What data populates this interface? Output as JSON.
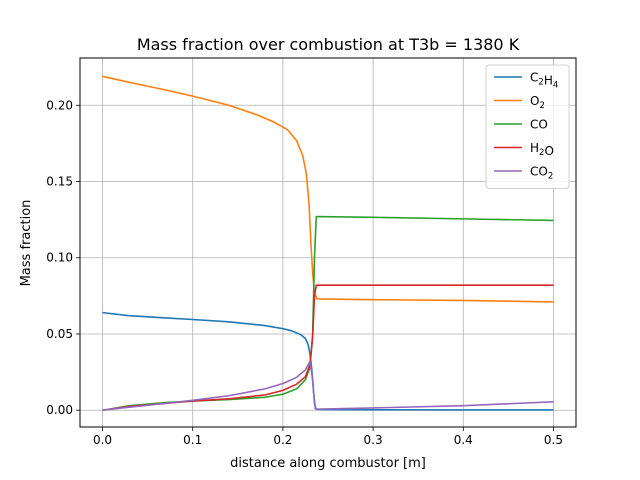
{
  "chart_data": {
    "type": "line",
    "title": "Mass fraction over combustion at T3b = 1380 K",
    "xlabel": "distance along combustor [m]",
    "ylabel": "Mass fraction",
    "xlim": [
      -0.025,
      0.525
    ],
    "ylim": [
      -0.011,
      0.231
    ],
    "xticks": [
      0.0,
      0.1,
      0.2,
      0.3,
      0.4,
      0.5
    ],
    "xtick_labels": [
      "0.0",
      "0.1",
      "0.2",
      "0.3",
      "0.4",
      "0.5"
    ],
    "yticks": [
      0.0,
      0.05,
      0.1,
      0.15,
      0.2
    ],
    "ytick_labels": [
      "0.00",
      "0.05",
      "0.10",
      "0.15",
      "0.20"
    ],
    "grid": true,
    "legend_position": "top-right",
    "series": [
      {
        "name": "C2H4",
        "label": {
          "base": "C",
          "sub1": "2",
          "mid": "H",
          "sub2": "4"
        },
        "color": "#1f77b4",
        "points": [
          [
            0.0,
            0.064
          ],
          [
            0.03,
            0.062
          ],
          [
            0.07,
            0.0605
          ],
          [
            0.1,
            0.0595
          ],
          [
            0.14,
            0.058
          ],
          [
            0.18,
            0.0555
          ],
          [
            0.2,
            0.0535
          ],
          [
            0.21,
            0.052
          ],
          [
            0.22,
            0.0495
          ],
          [
            0.225,
            0.047
          ],
          [
            0.228,
            0.043
          ],
          [
            0.23,
            0.037
          ],
          [
            0.232,
            0.027
          ],
          [
            0.234,
            0.012
          ],
          [
            0.236,
            0.001
          ],
          [
            0.24,
            0.0004
          ],
          [
            0.3,
            0.0003
          ],
          [
            0.4,
            0.0002
          ],
          [
            0.5,
            0.0002
          ]
        ]
      },
      {
        "name": "O2",
        "label": {
          "base": "O",
          "sub1": "2",
          "mid": "",
          "sub2": ""
        },
        "color": "#ff7f0e",
        "points": [
          [
            0.0,
            0.219
          ],
          [
            0.03,
            0.215
          ],
          [
            0.07,
            0.21
          ],
          [
            0.1,
            0.206
          ],
          [
            0.14,
            0.2
          ],
          [
            0.17,
            0.194
          ],
          [
            0.19,
            0.189
          ],
          [
            0.205,
            0.184
          ],
          [
            0.215,
            0.177
          ],
          [
            0.222,
            0.167
          ],
          [
            0.226,
            0.155
          ],
          [
            0.229,
            0.135
          ],
          [
            0.231,
            0.11
          ],
          [
            0.233,
            0.09
          ],
          [
            0.235,
            0.077
          ],
          [
            0.238,
            0.073
          ],
          [
            0.3,
            0.0725
          ],
          [
            0.4,
            0.072
          ],
          [
            0.5,
            0.071
          ]
        ]
      },
      {
        "name": "CO",
        "label": {
          "base": "CO",
          "sub1": "",
          "mid": "",
          "sub2": ""
        },
        "color": "#2ca02c",
        "points": [
          [
            0.0,
            0.0
          ],
          [
            0.03,
            0.003
          ],
          [
            0.07,
            0.005
          ],
          [
            0.1,
            0.006
          ],
          [
            0.14,
            0.007
          ],
          [
            0.18,
            0.0085
          ],
          [
            0.2,
            0.0105
          ],
          [
            0.215,
            0.014
          ],
          [
            0.225,
            0.02
          ],
          [
            0.23,
            0.028
          ],
          [
            0.233,
            0.05
          ],
          [
            0.235,
            0.1
          ],
          [
            0.237,
            0.127
          ],
          [
            0.3,
            0.1265
          ],
          [
            0.4,
            0.1255
          ],
          [
            0.5,
            0.1245
          ]
        ]
      },
      {
        "name": "H2O",
        "label": {
          "base": "H",
          "sub1": "2",
          "mid": "O",
          "sub2": ""
        },
        "color": "#d62728",
        "points": [
          [
            0.0,
            0.0
          ],
          [
            0.03,
            0.0025
          ],
          [
            0.07,
            0.0045
          ],
          [
            0.1,
            0.006
          ],
          [
            0.14,
            0.0075
          ],
          [
            0.18,
            0.01
          ],
          [
            0.2,
            0.013
          ],
          [
            0.215,
            0.017
          ],
          [
            0.225,
            0.022
          ],
          [
            0.23,
            0.03
          ],
          [
            0.233,
            0.048
          ],
          [
            0.235,
            0.075
          ],
          [
            0.237,
            0.082
          ],
          [
            0.3,
            0.082
          ],
          [
            0.4,
            0.082
          ],
          [
            0.5,
            0.082
          ]
        ]
      },
      {
        "name": "CO2",
        "label": {
          "base": "CO",
          "sub1": "2",
          "mid": "",
          "sub2": ""
        },
        "color": "#9467bd",
        "points": [
          [
            0.0,
            0.0
          ],
          [
            0.03,
            0.002
          ],
          [
            0.07,
            0.0045
          ],
          [
            0.1,
            0.0065
          ],
          [
            0.14,
            0.0095
          ],
          [
            0.18,
            0.014
          ],
          [
            0.2,
            0.0175
          ],
          [
            0.215,
            0.0215
          ],
          [
            0.225,
            0.0265
          ],
          [
            0.23,
            0.032
          ],
          [
            0.233,
            0.02
          ],
          [
            0.235,
            0.004
          ],
          [
            0.237,
            0.0007
          ],
          [
            0.3,
            0.0015
          ],
          [
            0.4,
            0.003
          ],
          [
            0.5,
            0.0055
          ]
        ]
      }
    ]
  }
}
